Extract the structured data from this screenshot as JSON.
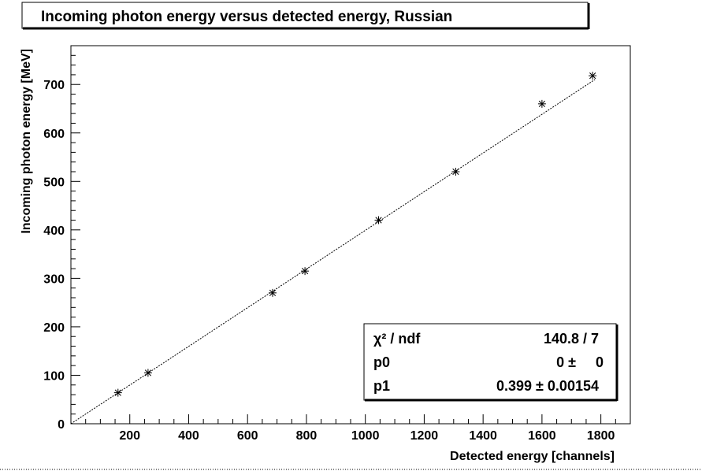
{
  "chart_data": {
    "type": "scatter",
    "title": "Incoming photon energy versus detected energy, Russian",
    "xlabel": "Detected energy [channels]",
    "ylabel": "Incoming photon energy [MeV]",
    "xlim": [
      0,
      1900
    ],
    "ylim": [
      0,
      780
    ],
    "x_ticks": [
      200,
      400,
      600,
      800,
      1000,
      1200,
      1400,
      1600,
      1800
    ],
    "y_ticks": [
      0,
      100,
      200,
      300,
      400,
      500,
      600,
      700
    ],
    "x": [
      160,
      262,
      685,
      795,
      1045,
      1307,
      1600,
      1772
    ],
    "y": [
      64,
      105,
      270,
      315,
      420,
      520,
      660,
      718
    ],
    "marker": "asterisk",
    "fit": {
      "function": "linear",
      "slope": 0.399,
      "intercept": 0,
      "x_range": [
        0,
        1780
      ]
    },
    "grid": false,
    "stats_box": {
      "placement": "bottom-right",
      "rows": [
        {
          "label": "χ² / ndf",
          "value": "140.8 / 7"
        },
        {
          "label": "p0",
          "value": "0 ±     0"
        },
        {
          "label": "p1",
          "value": "0.399 ± 0.00154"
        }
      ]
    },
    "colors": {
      "frame": "#000000",
      "marker": "#000000",
      "fit_line": "#000000",
      "background": "#ffffff"
    }
  }
}
